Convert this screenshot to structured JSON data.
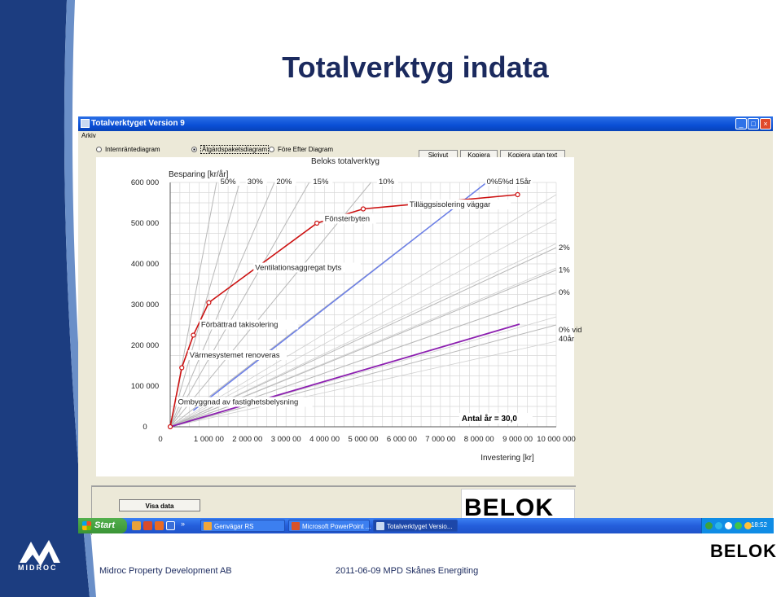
{
  "slide": {
    "title": "Totalverktyg indata",
    "footer_left": "Midroc Property Development AB",
    "footer_center": "2011-06-09 MPD Skånes Energiting",
    "midroc_logo_text": "MIDROC",
    "belok_logo_text": "BELOK"
  },
  "window": {
    "title": "Totalverktyget Version 9",
    "menu": [
      "Arkiv"
    ],
    "radios": [
      {
        "label": "Internräntediagram",
        "selected": false
      },
      {
        "label": "Åtgärdspaketsdiagram",
        "selected": true
      },
      {
        "label": "Före Efter Diagram",
        "selected": false
      }
    ],
    "buttons": {
      "print": "Skrivut",
      "copy": "Kopiera",
      "copy_no_text": "Kopiera utan text",
      "show_data": "Visa data"
    },
    "belok_box_text": "BELOK"
  },
  "chart_data": {
    "type": "line",
    "title": "Beloks totalverktyg",
    "ylabel": "Besparing [kr/år]",
    "xlabel": "Investering [kr]",
    "x_ticks": [
      "0",
      "1 000 00",
      "2 000 00",
      "3 000 00",
      "4 000 00",
      "5 000 00",
      "6 000 00",
      "7 000 00",
      "8 000 00",
      "9 000 00",
      "10 000 000"
    ],
    "y_ticks": [
      "0",
      "100 000",
      "200 000",
      "300 000",
      "400 000",
      "500 000",
      "600 000"
    ],
    "xlim": [
      0,
      10000000
    ],
    "ylim": [
      0,
      600000
    ],
    "grid": true,
    "measures": {
      "x": [
        0,
        300000,
        600000,
        1000000,
        3800000,
        5000000,
        9000000
      ],
      "y": [
        0,
        145000,
        225000,
        305000,
        500000,
        535000,
        570000
      ],
      "labels": [
        {
          "text": "Ombyggnad av fastighetsbelysning",
          "x": 200000,
          "y": 55000
        },
        {
          "text": "Värmesystemet renoveras",
          "x": 500000,
          "y": 170000
        },
        {
          "text": "Förbättrad takisolering",
          "x": 800000,
          "y": 245000
        },
        {
          "text": "Ventilationsaggregat byts",
          "x": 2200000,
          "y": 385000
        },
        {
          "text": "Fönsterbyten",
          "x": 4000000,
          "y": 505000
        },
        {
          "text": "Tilläggsisolering väggar",
          "x": 6200000,
          "y": 540000
        }
      ]
    },
    "rate_lines_top": [
      {
        "label": "50%",
        "x_end": 1200000
      },
      {
        "label": "30%",
        "x_end": 1800000
      },
      {
        "label": "20%",
        "x_end": 2700000
      },
      {
        "label": "15%",
        "x_end": 3600000
      },
      {
        "label": "10%",
        "x_end": 5200000
      },
      {
        "label": "0%",
        "x_end": 8200000
      }
    ],
    "rate_lines_right": [
      {
        "label": "2%",
        "y_end": 440000
      },
      {
        "label": "1%",
        "y_end": 385000
      },
      {
        "label": "0%",
        "y_end": 330000
      },
      {
        "label": "0% vid 40år",
        "y_end": 250000
      }
    ],
    "annotation_top_right": "0%5%d 15år",
    "antal_ar": "Antal år = 30,0",
    "colors": {
      "measures": "#cc1111",
      "rate_lines": "#b8b8b8",
      "blue_line": "#6a7ee8",
      "purple_line": "#8c1fb0"
    }
  },
  "taskbar": {
    "start": "Start",
    "tasks": [
      {
        "label": "Genvägar RS",
        "active": false
      },
      {
        "label": "Microsoft PowerPoint ...",
        "active": false
      },
      {
        "label": "Totalverktyget Versio...",
        "active": true
      }
    ],
    "clock": "18:52",
    "overflow": "»"
  }
}
